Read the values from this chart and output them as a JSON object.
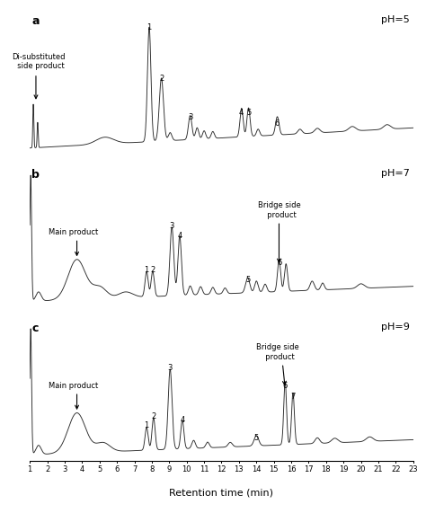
{
  "xlim": [
    1,
    23
  ],
  "xticks": [
    1,
    2,
    3,
    4,
    5,
    6,
    7,
    8,
    9,
    10,
    11,
    12,
    13,
    14,
    15,
    16,
    17,
    18,
    19,
    20,
    21,
    22,
    23
  ],
  "xlabel": "Retention time (min)",
  "panel_labels": [
    "a",
    "b",
    "c"
  ],
  "panel_pH": [
    "pH=5",
    "pH=7",
    "pH=9"
  ],
  "bg_color": "#ffffff",
  "line_color": "#2a2a2a"
}
